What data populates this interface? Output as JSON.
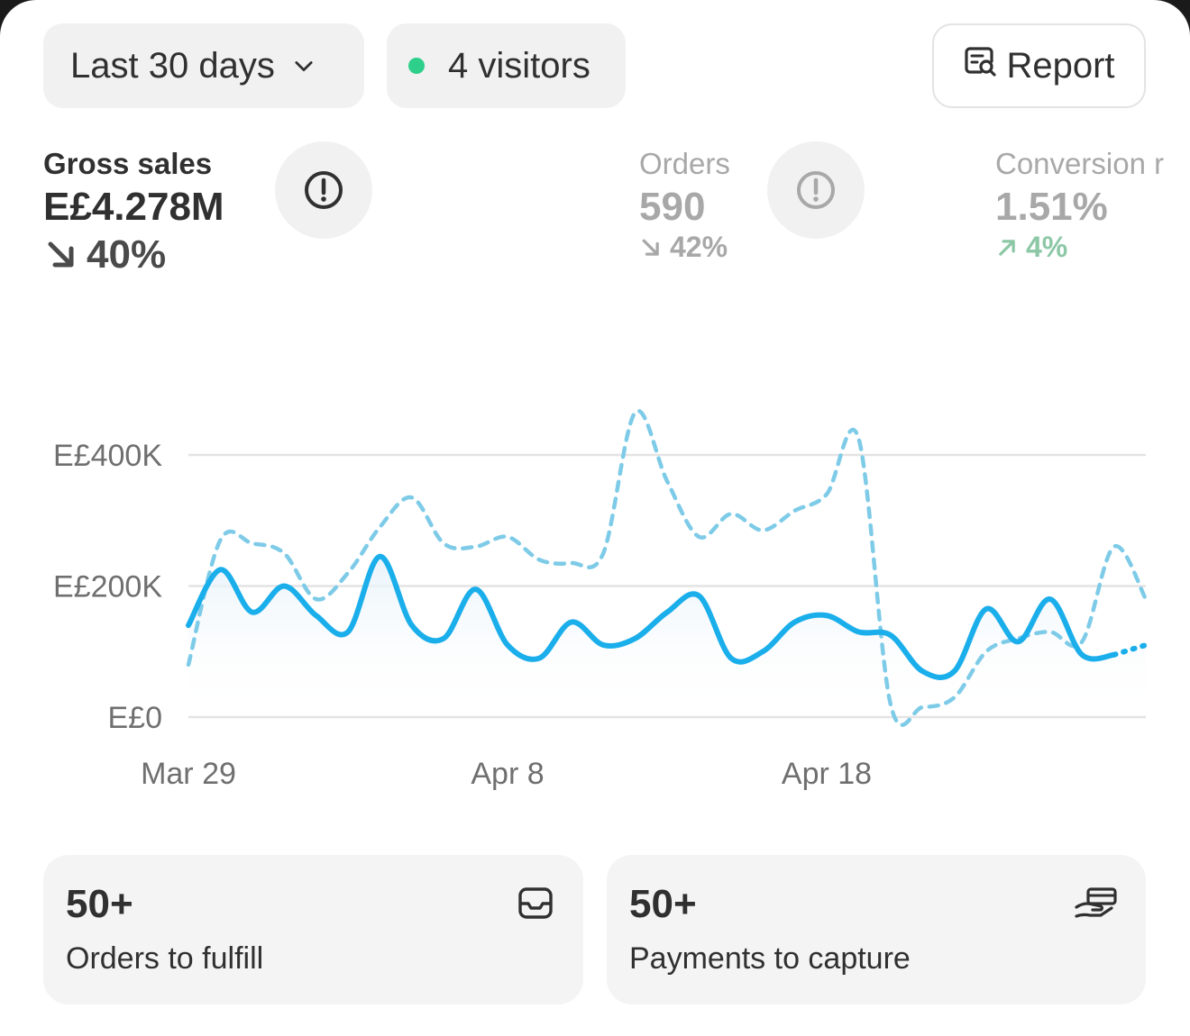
{
  "filters": {
    "date_range": "Last 30 days",
    "visitors": "4 visitors",
    "report_label": "Report"
  },
  "metrics": [
    {
      "label": "Gross sales",
      "value": "E£4.278M",
      "delta": "40%",
      "direction": "down"
    },
    {
      "label": "Orders",
      "value": "590",
      "delta": "42%",
      "direction": "down"
    },
    {
      "label": "Conversion r",
      "value": "1.51%",
      "delta": "4%",
      "direction": "up"
    }
  ],
  "chart_data": {
    "type": "line",
    "x_ticks": [
      "Mar 29",
      "Apr 8",
      "Apr 18"
    ],
    "y_ticks": [
      "E£400K",
      "E£200K",
      "E£0"
    ],
    "ylim": [
      0,
      400000
    ],
    "grid": true,
    "x": [
      "Mar 29",
      "Mar 30",
      "Mar 31",
      "Apr 1",
      "Apr 2",
      "Apr 3",
      "Apr 4",
      "Apr 5",
      "Apr 6",
      "Apr 7",
      "Apr 8",
      "Apr 9",
      "Apr 10",
      "Apr 11",
      "Apr 12",
      "Apr 13",
      "Apr 14",
      "Apr 15",
      "Apr 16",
      "Apr 17",
      "Apr 18",
      "Apr 19",
      "Apr 20",
      "Apr 21",
      "Apr 22",
      "Apr 23",
      "Apr 24",
      "Apr 25",
      "Apr 26",
      "Apr 27",
      "Apr 28"
    ],
    "series": [
      {
        "style": "solid",
        "color": "#1aaeeb",
        "values": [
          140000,
          225000,
          160000,
          200000,
          155000,
          130000,
          245000,
          140000,
          120000,
          195000,
          110000,
          90000,
          145000,
          110000,
          120000,
          160000,
          185000,
          90000,
          100000,
          145000,
          155000,
          130000,
          125000,
          70000,
          70000,
          165000,
          115000,
          180000,
          95000,
          95000,
          110000
        ]
      },
      {
        "style": "dashed",
        "color": "#7ecbe8",
        "values": [
          80000,
          270000,
          265000,
          250000,
          180000,
          220000,
          290000,
          335000,
          265000,
          260000,
          275000,
          240000,
          235000,
          250000,
          465000,
          360000,
          275000,
          310000,
          285000,
          315000,
          340000,
          425000,
          20000,
          15000,
          30000,
          100000,
          120000,
          130000,
          115000,
          260000,
          180000
        ]
      }
    ]
  },
  "cards": [
    {
      "count": "50+",
      "label": "Orders to fulfill",
      "icon": "inbox-icon"
    },
    {
      "count": "50+",
      "label": "Payments to capture",
      "icon": "hand-cash-icon"
    }
  ]
}
